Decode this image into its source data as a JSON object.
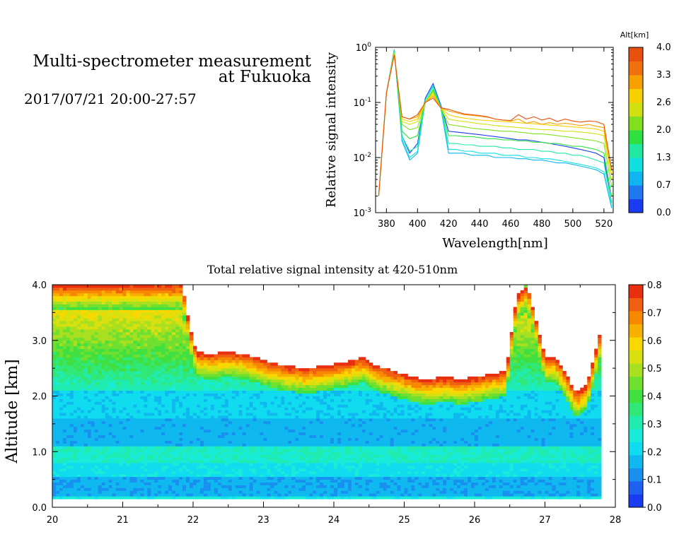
{
  "header": {
    "title_line1": "Multi-spectrometer measurement",
    "title_line2": "at Fukuoka",
    "subtitle": "2017/07/21 20:00-27:57"
  },
  "chart_data": [
    {
      "type": "line",
      "xlabel": "Wavelength[nm]",
      "ylabel": "Relative signal intensity",
      "xlim": [
        373,
        526
      ],
      "ylim": [
        0.001,
        1
      ],
      "yscale": "log",
      "x_ticks": [
        "380",
        "400",
        "420",
        "440",
        "460",
        "480",
        "500",
        "520"
      ],
      "y_ticks": [
        "10^-3",
        "10^-2",
        "10^-1",
        "10^0"
      ],
      "colorbar": {
        "label": "Alt[km]",
        "ticks": [
          "0.0",
          "0.7",
          "1.3",
          "2.0",
          "2.6",
          "3.3",
          "4.0"
        ],
        "colors": [
          "#1a3cf0",
          "#1f78f0",
          "#10b4f0",
          "#10e0e0",
          "#20e8a0",
          "#30e040",
          "#80e020",
          "#d0e010",
          "#f8d000",
          "#f8a000",
          "#f07010",
          "#e85010"
        ]
      },
      "x": [
        375,
        380,
        385,
        390,
        395,
        400,
        405,
        410,
        415,
        420,
        425,
        430,
        435,
        440,
        445,
        450,
        455,
        460,
        465,
        470,
        475,
        480,
        485,
        490,
        495,
        500,
        505,
        510,
        515,
        520,
        525
      ],
      "series": [
        {
          "color": "#1a3cf0",
          "values": [
            0.002,
            0.15,
            0.9,
            0.025,
            0.012,
            0.018,
            0.12,
            0.22,
            0.09,
            0.03,
            0.029,
            0.028,
            0.027,
            0.026,
            0.025,
            0.024,
            0.023,
            0.022,
            0.021,
            0.021,
            0.02,
            0.019,
            0.018,
            0.017,
            0.016,
            0.015,
            0.014,
            0.013,
            0.012,
            0.01,
            0.0015
          ]
        },
        {
          "color": "#10b4f0",
          "values": [
            0.002,
            0.15,
            0.92,
            0.02,
            0.009,
            0.012,
            0.11,
            0.2,
            0.08,
            0.012,
            0.012,
            0.012,
            0.011,
            0.011,
            0.011,
            0.01,
            0.01,
            0.01,
            0.0095,
            0.0095,
            0.009,
            0.009,
            0.0085,
            0.008,
            0.008,
            0.0075,
            0.007,
            0.0065,
            0.006,
            0.005,
            0.0012
          ]
        },
        {
          "color": "#10e0e0",
          "values": [
            0.002,
            0.15,
            0.9,
            0.022,
            0.01,
            0.013,
            0.11,
            0.2,
            0.085,
            0.014,
            0.014,
            0.013,
            0.013,
            0.012,
            0.012,
            0.012,
            0.011,
            0.011,
            0.011,
            0.01,
            0.01,
            0.0095,
            0.0095,
            0.009,
            0.0085,
            0.008,
            0.0075,
            0.007,
            0.0065,
            0.0055,
            0.0013
          ]
        },
        {
          "color": "#20e8a0",
          "values": [
            0.002,
            0.15,
            0.88,
            0.025,
            0.013,
            0.016,
            0.11,
            0.19,
            0.08,
            0.018,
            0.018,
            0.017,
            0.017,
            0.016,
            0.016,
            0.016,
            0.015,
            0.015,
            0.014,
            0.014,
            0.014,
            0.013,
            0.013,
            0.012,
            0.012,
            0.011,
            0.011,
            0.01,
            0.009,
            0.008,
            0.0015
          ]
        },
        {
          "color": "#30e040",
          "values": [
            0.002,
            0.15,
            0.85,
            0.03,
            0.022,
            0.025,
            0.1,
            0.17,
            0.08,
            0.025,
            0.025,
            0.024,
            0.024,
            0.023,
            0.022,
            0.022,
            0.021,
            0.021,
            0.02,
            0.02,
            0.019,
            0.019,
            0.018,
            0.018,
            0.017,
            0.016,
            0.016,
            0.015,
            0.014,
            0.012,
            0.002
          ]
        },
        {
          "color": "#80e020",
          "values": [
            0.002,
            0.15,
            0.82,
            0.04,
            0.032,
            0.035,
            0.1,
            0.16,
            0.08,
            0.04,
            0.038,
            0.036,
            0.034,
            0.033,
            0.032,
            0.031,
            0.03,
            0.03,
            0.029,
            0.028,
            0.027,
            0.027,
            0.026,
            0.025,
            0.024,
            0.023,
            0.022,
            0.021,
            0.02,
            0.018,
            0.003
          ]
        },
        {
          "color": "#d0e010",
          "values": [
            0.002,
            0.15,
            0.8,
            0.045,
            0.04,
            0.045,
            0.1,
            0.15,
            0.08,
            0.05,
            0.047,
            0.045,
            0.043,
            0.041,
            0.04,
            0.038,
            0.037,
            0.036,
            0.035,
            0.034,
            0.033,
            0.032,
            0.032,
            0.031,
            0.03,
            0.03,
            0.029,
            0.028,
            0.027,
            0.025,
            0.004
          ]
        },
        {
          "color": "#f8d000",
          "values": [
            0.002,
            0.15,
            0.78,
            0.05,
            0.045,
            0.05,
            0.1,
            0.14,
            0.08,
            0.06,
            0.055,
            0.052,
            0.05,
            0.048,
            0.047,
            0.046,
            0.045,
            0.044,
            0.043,
            0.042,
            0.041,
            0.04,
            0.039,
            0.038,
            0.037,
            0.036,
            0.035,
            0.034,
            0.033,
            0.03,
            0.005
          ]
        },
        {
          "color": "#f8a000",
          "values": [
            0.002,
            0.15,
            0.75,
            0.055,
            0.05,
            0.055,
            0.1,
            0.13,
            0.08,
            0.07,
            0.065,
            0.06,
            0.058,
            0.056,
            0.054,
            0.05,
            0.048,
            0.046,
            0.05,
            0.042,
            0.045,
            0.04,
            0.043,
            0.04,
            0.042,
            0.04,
            0.038,
            0.04,
            0.037,
            0.035,
            0.006
          ]
        },
        {
          "color": "#e85010",
          "values": [
            0.002,
            0.15,
            0.72,
            0.055,
            0.05,
            0.06,
            0.1,
            0.12,
            0.08,
            0.075,
            0.068,
            0.062,
            0.06,
            0.058,
            0.055,
            0.05,
            0.048,
            0.047,
            0.06,
            0.05,
            0.055,
            0.048,
            0.052,
            0.045,
            0.05,
            0.046,
            0.044,
            0.046,
            0.045,
            0.04,
            0.006
          ]
        }
      ]
    },
    {
      "type": "heatmap",
      "title": "Total relative signal intensity at 420-510nm",
      "ylabel": "Altitude [km]",
      "xlabel": "",
      "xlim": [
        20,
        28
      ],
      "ylim": [
        0,
        4
      ],
      "x_ticks": [
        "20",
        "21",
        "22",
        "23",
        "24",
        "25",
        "26",
        "27",
        "28"
      ],
      "y_ticks": [
        "0.0",
        "1.0",
        "2.0",
        "3.0",
        "4.0"
      ],
      "data_time_range": [
        20,
        27.8
      ],
      "data_alt_range": [
        0.15,
        4.0
      ],
      "colorbar": {
        "ticks": [
          "0.0",
          "0.1",
          "0.2",
          "0.3",
          "0.4",
          "0.5",
          "0.6",
          "0.7",
          "0.8"
        ],
        "range": [
          0,
          0.8
        ],
        "colors": [
          "#1a3cf0",
          "#1f60f0",
          "#1890f0",
          "#10b8f0",
          "#10dcf0",
          "#18ecd8",
          "#20ecb0",
          "#30e878",
          "#40e040",
          "#70e030",
          "#a8e020",
          "#d8e010",
          "#f8d800",
          "#f8b000",
          "#f88800",
          "#f06010",
          "#e83010"
        ]
      },
      "cloud_base_km": [
        [
          20.0,
          4.0
        ],
        [
          21.0,
          4.0
        ],
        [
          21.85,
          4.0
        ],
        [
          21.95,
          3.25
        ],
        [
          22.05,
          2.8
        ],
        [
          22.25,
          2.75
        ],
        [
          22.5,
          2.8
        ],
        [
          22.75,
          2.75
        ],
        [
          23.0,
          2.65
        ],
        [
          23.3,
          2.55
        ],
        [
          23.6,
          2.5
        ],
        [
          23.9,
          2.55
        ],
        [
          24.15,
          2.6
        ],
        [
          24.4,
          2.7
        ],
        [
          24.6,
          2.55
        ],
        [
          24.85,
          2.45
        ],
        [
          25.1,
          2.35
        ],
        [
          25.35,
          2.3
        ],
        [
          25.6,
          2.35
        ],
        [
          25.8,
          2.3
        ],
        [
          26.05,
          2.35
        ],
        [
          26.25,
          2.4
        ],
        [
          26.45,
          2.45
        ],
        [
          26.6,
          3.8
        ],
        [
          26.75,
          4.0
        ],
        [
          27.0,
          2.7
        ],
        [
          27.15,
          2.7
        ],
        [
          27.3,
          2.4
        ],
        [
          27.45,
          2.05
        ],
        [
          27.6,
          2.2
        ],
        [
          27.8,
          3.2
        ]
      ],
      "layers": [
        {
          "alt_range": [
            0.15,
            0.2
          ],
          "value": 0.25
        },
        {
          "alt_range": [
            0.2,
            0.55
          ],
          "value": 0.15
        },
        {
          "alt_range": [
            0.55,
            0.8
          ],
          "value": 0.22
        },
        {
          "alt_range": [
            0.8,
            1.1
          ],
          "value": 0.28
        },
        {
          "alt_range": [
            1.1,
            1.6
          ],
          "value": 0.16
        },
        {
          "alt_range": [
            1.6,
            2.1
          ],
          "value": 0.2
        },
        {
          "alt_range": [
            2.1,
            2.5
          ],
          "value": 0.3
        }
      ]
    }
  ]
}
